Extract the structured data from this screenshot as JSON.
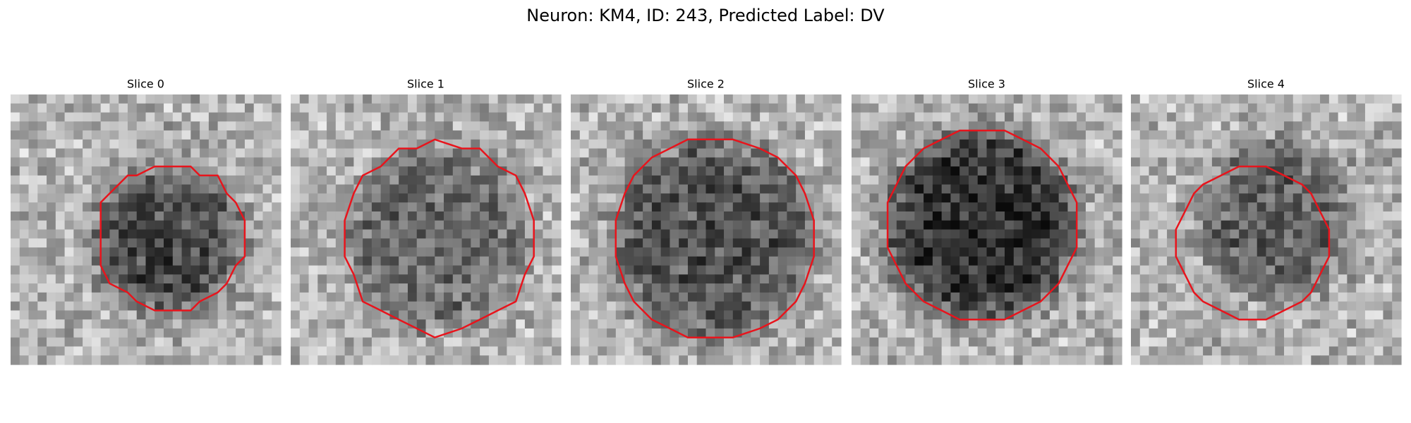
{
  "title": "Neuron: KM4, ID: 243, Predicted Label: DV",
  "panels": [
    {
      "title": "Slice 0"
    },
    {
      "title": "Slice 1"
    },
    {
      "title": "Slice 2"
    },
    {
      "title": "Slice 3"
    },
    {
      "title": "Slice 4"
    }
  ]
}
